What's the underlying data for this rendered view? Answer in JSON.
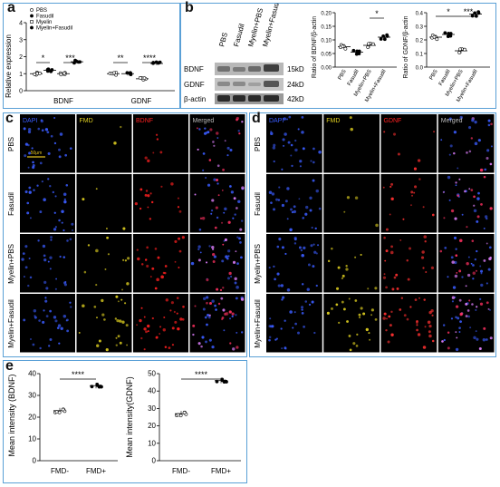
{
  "panels": {
    "a": "a",
    "b": "b",
    "c": "c",
    "d": "d",
    "e": "e"
  },
  "panel_a": {
    "ylabel": "Relative expression",
    "yticks": [
      "0",
      "1",
      "2",
      "3",
      "4"
    ],
    "groups": [
      "BDNF",
      "GDNF"
    ],
    "legend": [
      "PBS",
      "Fasudil",
      "Myelin",
      "Myelin+Fasudil"
    ],
    "sig": [
      "*",
      "***",
      "**",
      "****"
    ]
  },
  "panel_b": {
    "lanes": [
      "PBS",
      "Fasudil",
      "Myelin+PBS",
      "Myelin+Fasudil"
    ],
    "rows": [
      {
        "name": "BDNF",
        "size": "15kD"
      },
      {
        "name": "GDNF",
        "size": "24kD"
      },
      {
        "name": "β-actin",
        "size": "42kD"
      }
    ]
  },
  "panel_b_bdnf": {
    "ylabel": "Ratio of BDNF/β-actin",
    "yticks": [
      "0.00",
      "0.05",
      "0.10",
      "0.15",
      "0.20"
    ],
    "categories": [
      "PBS",
      "Fasudil",
      "Myelin+PBS",
      "Myelin+Fasudil"
    ],
    "sig": [
      "*"
    ]
  },
  "panel_b_gdnf": {
    "ylabel": "Ratio of GDNF/β-actin",
    "yticks": [
      "0.0",
      "0.1",
      "0.2",
      "0.3",
      "0.4"
    ],
    "categories": [
      "PBS",
      "Fasudil",
      "Myelin+PBS",
      "Myelin+Fasudil"
    ],
    "sig": [
      "*",
      "***"
    ]
  },
  "panel_c": {
    "columns": [
      "DAPI",
      "FMD",
      "BDNF",
      "Merged"
    ],
    "rows": [
      "PBS",
      "Fasudil",
      "Myelin+PBS",
      "Myelin+Fasudil"
    ],
    "scale": "50μm"
  },
  "panel_d": {
    "columns": [
      "DAPI",
      "FMD",
      "GDNF",
      "Merged"
    ],
    "rows": [
      "PBS",
      "Fasudil",
      "Myelin+PBS",
      "Myelin+Fasudil"
    ]
  },
  "panel_e1": {
    "ylabel": "Mean intensity (BDNF)",
    "yticks": [
      "0",
      "10",
      "20",
      "30",
      "40"
    ],
    "categories": [
      "FMD-",
      "FMD+"
    ],
    "sig": "****"
  },
  "panel_e2": {
    "ylabel": "Mean intensity(GDNF)",
    "yticks": [
      "0",
      "10",
      "20",
      "30",
      "40",
      "50"
    ],
    "categories": [
      "FMD-",
      "FMD+"
    ],
    "sig": "****"
  },
  "colors": {
    "frame": "#5aa0d6",
    "dapi": "#3a5cff",
    "fmd": "#e0d020",
    "bdnf": "#ff2020",
    "merged": "#ffffff"
  },
  "chart_data": [
    {
      "type": "scatter",
      "title": "",
      "ylabel": "Relative expression",
      "ylim": [
        0,
        4
      ],
      "categories": [
        "BDNF",
        "GDNF"
      ],
      "series": [
        {
          "name": "PBS",
          "values": [
            1.0,
            1.0
          ]
        },
        {
          "name": "Fasudil",
          "values": [
            1.2,
            1.0
          ]
        },
        {
          "name": "Myelin",
          "values": [
            1.0,
            0.7
          ]
        },
        {
          "name": "Myelin+Fasudil",
          "values": [
            1.7,
            1.6
          ]
        }
      ]
    },
    {
      "type": "scatter",
      "title": "",
      "ylabel": "Ratio of BDNF/β-actin",
      "ylim": [
        0,
        0.2
      ],
      "categories": [
        "PBS",
        "Fasudil",
        "Myelin+PBS",
        "Myelin+Fasudil"
      ],
      "values": [
        0.075,
        0.055,
        0.08,
        0.11
      ]
    },
    {
      "type": "scatter",
      "title": "",
      "ylabel": "Ratio of GDNF/β-actin",
      "ylim": [
        0,
        0.4
      ],
      "categories": [
        "PBS",
        "Fasudil",
        "Myelin+PBS",
        "Myelin+Fasudil"
      ],
      "values": [
        0.22,
        0.24,
        0.12,
        0.39
      ]
    },
    {
      "type": "scatter",
      "title": "",
      "ylabel": "Mean intensity (BDNF)",
      "ylim": [
        0,
        40
      ],
      "categories": [
        "FMD-",
        "FMD+"
      ],
      "values": [
        23,
        34.5
      ]
    },
    {
      "type": "scatter",
      "title": "",
      "ylabel": "Mean intensity(GDNF)",
      "ylim": [
        0,
        50
      ],
      "categories": [
        "FMD-",
        "FMD+"
      ],
      "values": [
        27,
        46
      ]
    }
  ]
}
